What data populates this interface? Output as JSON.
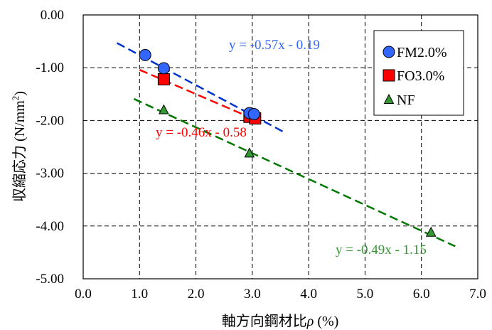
{
  "chart_data": {
    "type": "scatter",
    "xlabel_main": "軸方向鋼材比",
    "xlabel_symbol": "ρ",
    "xlabel_unit": " (%)",
    "ylabel_main": "収縮応力 (N/mm",
    "ylabel_sup": "2",
    "ylabel_close": ")",
    "xlim": [
      0,
      7
    ],
    "ylim": [
      -5,
      0
    ],
    "x_ticks": [
      0,
      1,
      2,
      3,
      4,
      5,
      6,
      7
    ],
    "x_tick_labels": [
      "0.0",
      "1.0",
      "2.0",
      "3.0",
      "4.0",
      "5.0",
      "6.0",
      "7.0"
    ],
    "y_ticks": [
      0,
      -1,
      -2,
      -3,
      -4,
      -5
    ],
    "y_tick_labels": [
      "0.00",
      "-1.00",
      "-2.00",
      "-3.00",
      "-4.00",
      "-5.00"
    ],
    "grid": true,
    "legend_position": "top-right",
    "series": [
      {
        "name": "FM2.0%",
        "marker": "circle",
        "color": "#3366ff",
        "line_color": "#0033cc",
        "points": [
          [
            1.1,
            -0.76
          ],
          [
            1.43,
            -1.01
          ],
          [
            2.95,
            -1.86
          ],
          [
            3.03,
            -1.88
          ]
        ],
        "fit": {
          "slope": -0.57,
          "intercept": -0.19,
          "x_range": [
            0.6,
            3.6
          ]
        },
        "equation": "y = -0.57x - 0.19"
      },
      {
        "name": "FO3.0%",
        "marker": "square",
        "color": "#ff0000",
        "line_color": "#ff0000",
        "points": [
          [
            1.43,
            -1.22
          ],
          [
            2.95,
            -1.93
          ],
          [
            3.05,
            -1.96
          ]
        ],
        "fit": {
          "slope": -0.46,
          "intercept": -0.58,
          "x_range": [
            1.0,
            3.1
          ]
        },
        "equation": "y = -0.46x - 0.58"
      },
      {
        "name": "NF",
        "marker": "triangle",
        "color": "#339933",
        "line_color": "#007700",
        "points": [
          [
            1.43,
            -1.8
          ],
          [
            2.95,
            -2.62
          ],
          [
            6.17,
            -4.12
          ]
        ],
        "fit": {
          "slope": -0.49,
          "intercept": -1.15,
          "x_range": [
            0.9,
            6.6
          ]
        },
        "equation": "y = -0.49x - 1.15"
      }
    ]
  }
}
